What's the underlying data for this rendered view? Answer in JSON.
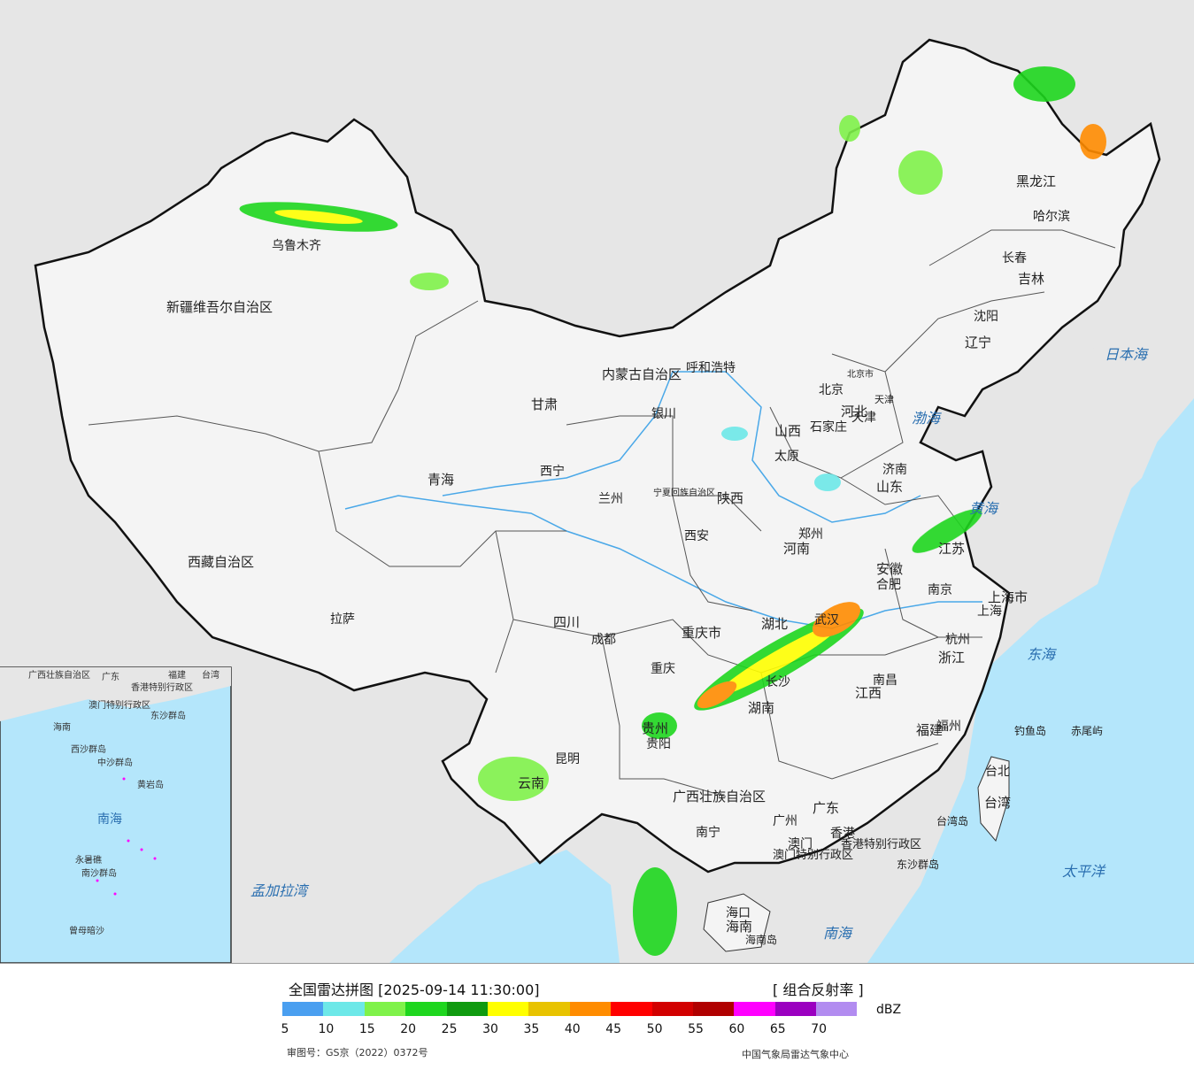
{
  "legend": {
    "title": "全国雷达拼图 [2025-09-14 11:30:00]",
    "product": "[ 组合反射率 ]",
    "unit": "dBZ",
    "ticks": [
      "5",
      "10",
      "15",
      "20",
      "25",
      "30",
      "35",
      "40",
      "45",
      "50",
      "55",
      "60",
      "65",
      "70"
    ],
    "colors": [
      "#4a9ff0",
      "#6de8e8",
      "#7ff24a",
      "#1ed61e",
      "#0f9a0f",
      "#ffff00",
      "#e8c300",
      "#ff8c00",
      "#ff0000",
      "#d20000",
      "#b00000",
      "#ff00ff",
      "#9b00c0",
      "#b28cf0"
    ],
    "approval": "审图号：GS京（2022）0372号",
    "credit": "中国气象局雷达气象中心"
  },
  "map": {
    "colors": {
      "sea": "#b4e6fb",
      "land": "#f4f4f4",
      "foreign": "#e6e6e6",
      "border": "#111111",
      "river": "#4aa8e8"
    },
    "provinces": [
      "新疆维吾尔自治区",
      "西藏自治区",
      "青海",
      "甘肃",
      "内蒙古自治区",
      "黑龙江",
      "吉林",
      "辽宁",
      "河北",
      "山西",
      "山东",
      "河南",
      "陕西",
      "宁夏回族自治区",
      "四川",
      "重庆市",
      "湖北",
      "湖南",
      "贵州",
      "云南",
      "广西壮族自治区",
      "广东",
      "江西",
      "福建",
      "浙江",
      "安徽",
      "江苏",
      "上海市",
      "台湾",
      "海南",
      "北京市",
      "天津",
      "香港特别行政区",
      "澳门特别行政区"
    ],
    "cities": [
      "乌鲁木齐",
      "拉萨",
      "西宁",
      "兰州",
      "银川",
      "呼和浩特",
      "北京",
      "天津",
      "石家庄",
      "太原",
      "济南",
      "郑州",
      "西安",
      "成都",
      "重庆",
      "武汉",
      "长沙",
      "南昌",
      "合肥",
      "南京",
      "上海",
      "杭州",
      "福州",
      "台北",
      "广州",
      "香港",
      "澳门",
      "南宁",
      "贵阳",
      "昆明",
      "海口",
      "哈尔滨",
      "长春",
      "沈阳"
    ],
    "seas": [
      "渤海",
      "黄海",
      "东海",
      "日本海",
      "太平洋",
      "南海",
      "孟加拉湾"
    ],
    "islands": [
      "钓鱼岛",
      "赤尾屿",
      "台湾岛",
      "东沙群岛",
      "海南岛"
    ],
    "inset": {
      "labels": [
        "广西壮族自治区",
        "广东",
        "福建",
        "台湾",
        "香港特别行政区",
        "澳门特别行政区",
        "海南",
        "西沙群岛",
        "中沙群岛",
        "黄岩岛",
        "南海",
        "永暑礁",
        "南沙群岛",
        "曾母暗沙",
        "东沙群岛"
      ]
    }
  }
}
